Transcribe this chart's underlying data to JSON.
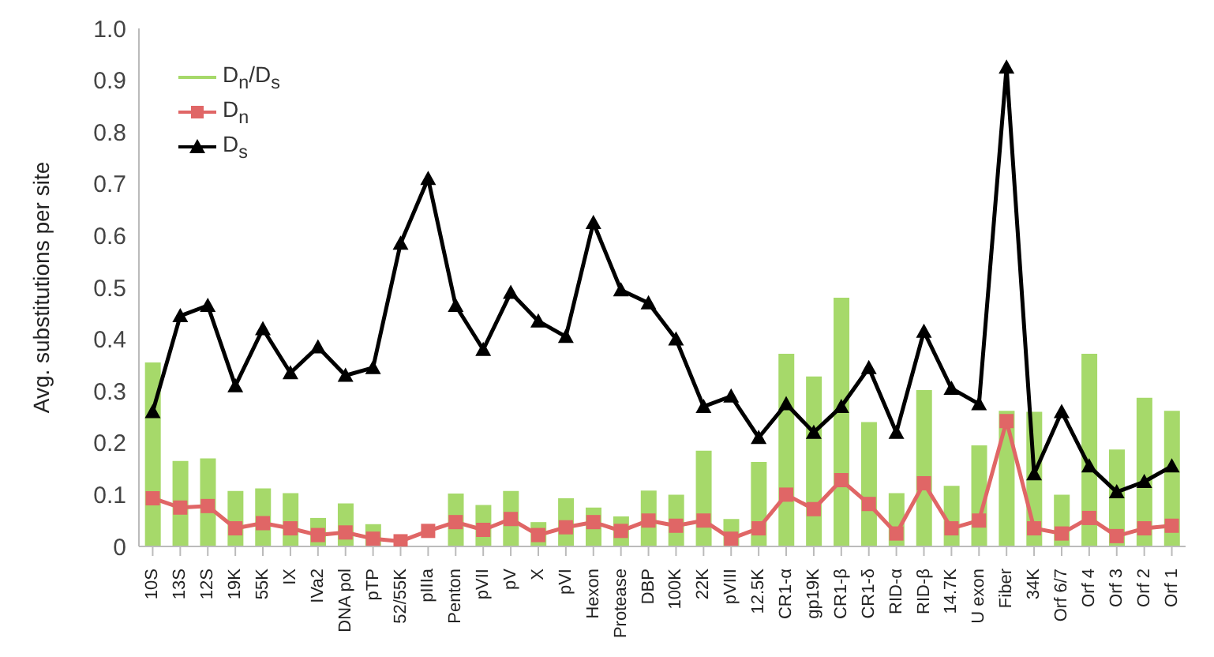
{
  "chart_data": {
    "type": "bar",
    "ylabel": "Avg. substitutions per site",
    "categories": [
      "10S",
      "13S",
      "12S",
      "19K",
      "55K",
      "IX",
      "IVa2",
      "DNA pol",
      "pTP",
      "52/55K",
      "pIIIa",
      "Penton",
      "pVII",
      "pV",
      "X",
      "pVI",
      "Hexon",
      "Protease",
      "DBP",
      "100K",
      "22K",
      "pVIII",
      "12.5K",
      "CR1-α",
      "gp19K",
      "CR1-β",
      "CR1-δ",
      "RID-α",
      "RID-β",
      "14.7K",
      "U exon",
      "Fiber",
      "34K",
      "Orf 6/7",
      "Orf 4",
      "Orf 3",
      "Orf 2",
      "Orf 1"
    ],
    "series": [
      {
        "name": "D$_{n}$/D$_{s}$",
        "color": "#a6d96a",
        "values": [
          0.355,
          0.165,
          0.17,
          0.107,
          0.112,
          0.103,
          0.055,
          0.083,
          0.043,
          null,
          null,
          0.102,
          0.08,
          0.107,
          0.047,
          0.093,
          0.075,
          0.058,
          0.108,
          0.1,
          0.185,
          0.053,
          0.163,
          0.372,
          0.328,
          0.48,
          0.24,
          0.103,
          0.302,
          0.117,
          0.195,
          0.262,
          0.26,
          0.1,
          0.372,
          0.187,
          0.287,
          0.262
        ]
      },
      {
        "name": "D$_{n}$",
        "type": "line",
        "marker": "square",
        "color": "#e06666",
        "values": [
          0.093,
          0.075,
          0.078,
          0.035,
          0.045,
          0.035,
          0.022,
          0.027,
          0.015,
          0.01,
          0.03,
          0.047,
          0.032,
          0.053,
          0.022,
          0.037,
          0.047,
          0.03,
          0.05,
          0.04,
          0.05,
          0.015,
          0.035,
          0.1,
          0.072,
          0.128,
          0.082,
          0.025,
          0.122,
          0.035,
          0.05,
          0.242,
          0.035,
          0.025,
          0.055,
          0.02,
          0.035,
          0.04
        ]
      },
      {
        "name": "D$_{s}$",
        "type": "line",
        "marker": "triangle",
        "color": "#000000",
        "values": [
          0.26,
          0.445,
          0.465,
          0.31,
          0.42,
          0.335,
          0.385,
          0.33,
          0.345,
          0.585,
          0.71,
          0.465,
          0.38,
          0.49,
          0.435,
          0.405,
          0.625,
          0.495,
          0.47,
          0.4,
          0.27,
          0.29,
          0.21,
          0.275,
          0.22,
          0.27,
          0.345,
          0.22,
          0.415,
          0.305,
          0.275,
          0.925,
          0.14,
          0.26,
          0.155,
          0.105,
          0.125,
          0.155
        ]
      }
    ],
    "ylim": [
      0,
      1
    ],
    "yticks": [
      0,
      {
        "value": 0.1,
        "label": "0.1"
      },
      {
        "value": 0.2,
        "label": "0.2"
      },
      {
        "value": 0.3,
        "label": "0.3"
      },
      {
        "value": 0.4,
        "label": "0.4"
      },
      {
        "value": 0.5,
        "label": "0.5"
      },
      {
        "value": 0.6,
        "label": "0.6"
      },
      {
        "value": 0.7,
        "label": "0.7"
      },
      {
        "value": 0.8,
        "label": "0.8"
      },
      {
        "value": 0.9,
        "label": "0.9"
      },
      {
        "value": 1,
        "label": "1.0"
      }
    ],
    "grid": false,
    "legend": "top left"
  }
}
